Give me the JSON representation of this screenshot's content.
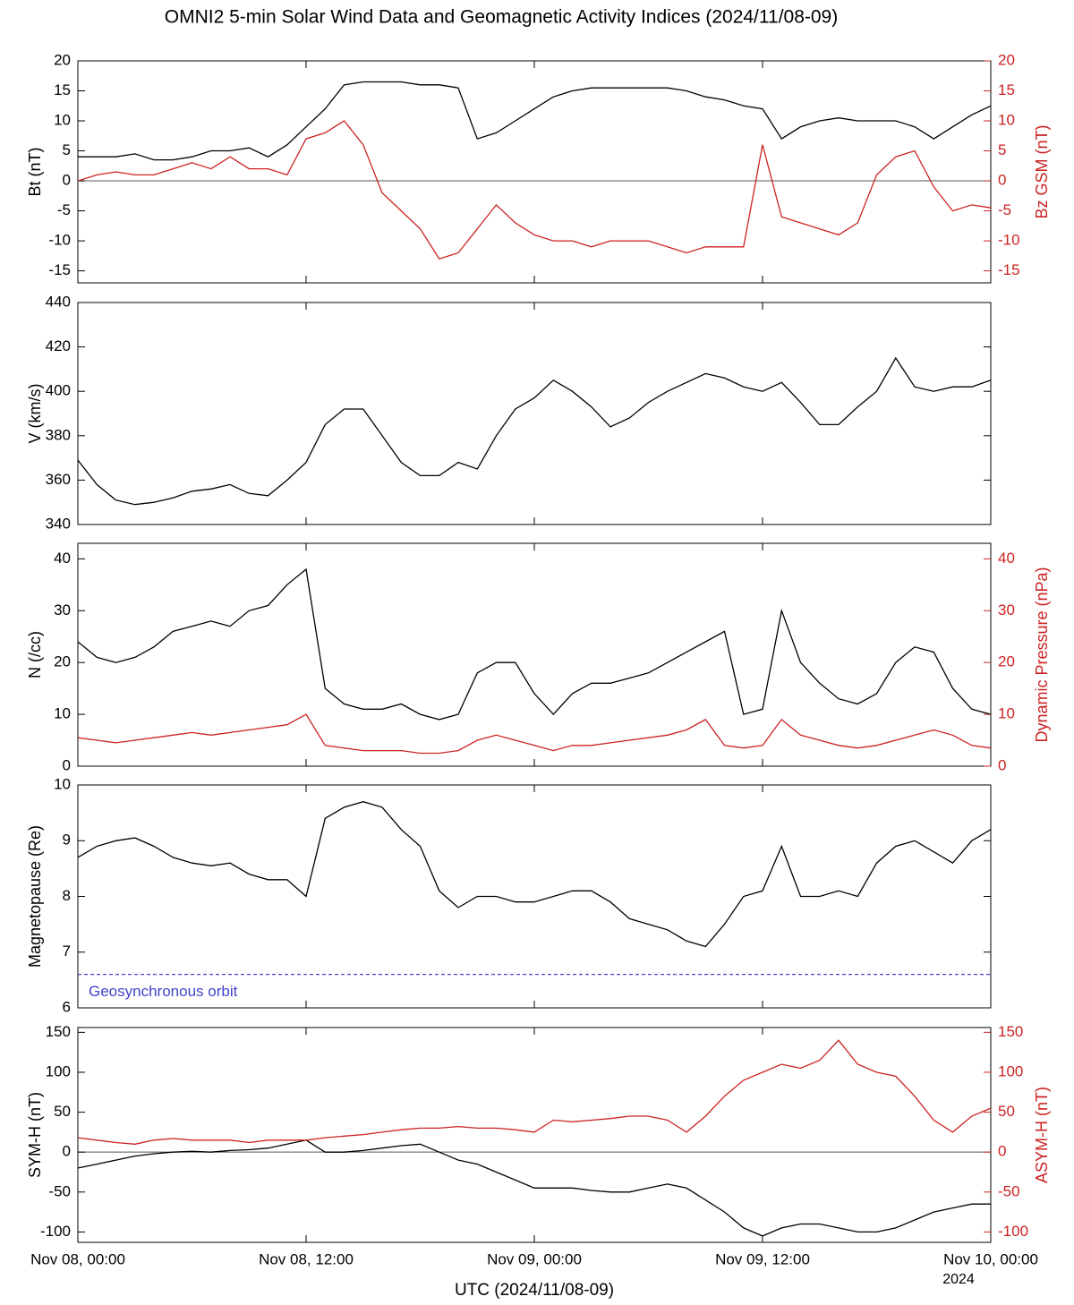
{
  "title": "OMNI2 5-min Solar Wind Data and Geomagnetic Activity Indices (2024/11/08-09)",
  "chart_data": [
    {
      "type": "line",
      "x": [
        0,
        1,
        2,
        3,
        4,
        5,
        6,
        7,
        8,
        9,
        10,
        11,
        12,
        13,
        14,
        15,
        16,
        17,
        18,
        19,
        20,
        21,
        22,
        23,
        24,
        25,
        26,
        27,
        28,
        29,
        30,
        31,
        32,
        33,
        34,
        35,
        36,
        37,
        38,
        39,
        40,
        41,
        42,
        43,
        44,
        45,
        46,
        47,
        48
      ],
      "xlim": [
        0,
        48
      ],
      "xticks": [
        0,
        12,
        24,
        36,
        48
      ],
      "ylim": [
        -17,
        20
      ],
      "yticks": [
        -15,
        -10,
        -5,
        0,
        5,
        10,
        15,
        20
      ],
      "y2lim": [
        -17,
        20
      ],
      "y2ticks": [
        -15,
        -10,
        -5,
        0,
        5,
        10,
        15,
        20
      ],
      "zero_line": true,
      "series": [
        {
          "name": "Bt (nT)",
          "color": "#000000",
          "axis": "y",
          "values": [
            4,
            4,
            4,
            4.5,
            3.5,
            3.5,
            4,
            5,
            5,
            5.5,
            4,
            6,
            9,
            12,
            16,
            16.5,
            16.5,
            16.5,
            16,
            16,
            15.5,
            7,
            8,
            10,
            12,
            14,
            15,
            15.5,
            15.5,
            15.5,
            15.5,
            15.5,
            15,
            14,
            13.5,
            12.5,
            12,
            7,
            9,
            10,
            10.5,
            10,
            10,
            10,
            9,
            7,
            9,
            11,
            12.5
          ]
        },
        {
          "name": "Bz GSM (nT)",
          "color": "#cc2222",
          "axis": "y2",
          "values": [
            0,
            1,
            1.5,
            1,
            1,
            2,
            3,
            2,
            4,
            2,
            2,
            1,
            7,
            8,
            10,
            6,
            -2,
            -5,
            -8,
            -13,
            -12,
            -8,
            -4,
            -7,
            -9,
            -10,
            -10,
            -11,
            -10,
            -10,
            -10,
            -11,
            -12,
            -11,
            -11,
            -11,
            6,
            -6,
            -7,
            -8,
            -9,
            -7,
            1,
            4,
            5,
            -1,
            -5,
            -4,
            -4.5
          ]
        }
      ]
    },
    {
      "type": "line",
      "x": [
        0,
        1,
        2,
        3,
        4,
        5,
        6,
        7,
        8,
        9,
        10,
        11,
        12,
        13,
        14,
        15,
        16,
        17,
        18,
        19,
        20,
        21,
        22,
        23,
        24,
        25,
        26,
        27,
        28,
        29,
        30,
        31,
        32,
        33,
        34,
        35,
        36,
        37,
        38,
        39,
        40,
        41,
        42,
        43,
        44,
        45,
        46,
        47,
        48
      ],
      "xlim": [
        0,
        48
      ],
      "xticks": [
        0,
        12,
        24,
        36,
        48
      ],
      "ylim": [
        340,
        440
      ],
      "yticks": [
        340,
        360,
        380,
        400,
        420,
        440
      ],
      "series": [
        {
          "name": "V (km/s)",
          "color": "#000000",
          "axis": "y",
          "values": [
            369,
            358,
            351,
            349,
            350,
            352,
            355,
            356,
            358,
            354,
            353,
            360,
            368,
            385,
            392,
            392,
            380,
            368,
            362,
            362,
            368,
            365,
            380,
            392,
            397,
            405,
            400,
            393,
            384,
            388,
            395,
            400,
            404,
            408,
            406,
            402,
            400,
            404,
            395,
            385,
            385,
            393,
            400,
            415,
            402,
            400,
            402,
            402,
            405
          ]
        }
      ]
    },
    {
      "type": "line",
      "x": [
        0,
        1,
        2,
        3,
        4,
        5,
        6,
        7,
        8,
        9,
        10,
        11,
        12,
        13,
        14,
        15,
        16,
        17,
        18,
        19,
        20,
        21,
        22,
        23,
        24,
        25,
        26,
        27,
        28,
        29,
        30,
        31,
        32,
        33,
        34,
        35,
        36,
        37,
        38,
        39,
        40,
        41,
        42,
        43,
        44,
        45,
        46,
        47,
        48
      ],
      "xlim": [
        0,
        48
      ],
      "xticks": [
        0,
        12,
        24,
        36,
        48
      ],
      "ylim": [
        0,
        43
      ],
      "yticks": [
        0,
        10,
        20,
        30,
        40
      ],
      "y2lim": [
        0,
        43
      ],
      "y2ticks": [
        0,
        10,
        20,
        30,
        40
      ],
      "series": [
        {
          "name": "N (/cc)",
          "color": "#000000",
          "axis": "y",
          "values": [
            24,
            21,
            20,
            21,
            23,
            26,
            27,
            28,
            27,
            30,
            31,
            35,
            38,
            15,
            12,
            11,
            11,
            12,
            10,
            9,
            10,
            18,
            20,
            20,
            14,
            10,
            14,
            16,
            16,
            17,
            18,
            20,
            22,
            24,
            26,
            10,
            11,
            30,
            20,
            16,
            13,
            12,
            14,
            20,
            23,
            22,
            15,
            11,
            10
          ]
        },
        {
          "name": "Dynamic Pressure (nPa)",
          "color": "#cc2222",
          "axis": "y2",
          "values": [
            5.5,
            5,
            4.5,
            5,
            5.5,
            6,
            6.5,
            6,
            6.5,
            7,
            7.5,
            8,
            10,
            4,
            3.5,
            3,
            3,
            3,
            2.5,
            2.5,
            3,
            5,
            6,
            5,
            4,
            3,
            4,
            4,
            4.5,
            5,
            5.5,
            6,
            7,
            9,
            4,
            3.5,
            4,
            9,
            6,
            5,
            4,
            3.5,
            4,
            5,
            6,
            7,
            6,
            4,
            3.5
          ]
        }
      ]
    },
    {
      "type": "line",
      "x": [
        0,
        1,
        2,
        3,
        4,
        5,
        6,
        7,
        8,
        9,
        10,
        11,
        12,
        13,
        14,
        15,
        16,
        17,
        18,
        19,
        20,
        21,
        22,
        23,
        24,
        25,
        26,
        27,
        28,
        29,
        30,
        31,
        32,
        33,
        34,
        35,
        36,
        37,
        38,
        39,
        40,
        41,
        42,
        43,
        44,
        45,
        46,
        47,
        48
      ],
      "xlim": [
        0,
        48
      ],
      "xticks": [
        0,
        12,
        24,
        36,
        48
      ],
      "ylim": [
        6,
        10
      ],
      "yticks": [
        6,
        7,
        8,
        9,
        10
      ],
      "reference_line": {
        "value": 6.6,
        "label": "Geosynchronous orbit",
        "color": "#4444cc"
      },
      "series": [
        {
          "name": "Magnetopause (Re)",
          "color": "#000000",
          "axis": "y",
          "values": [
            8.7,
            8.9,
            9.0,
            9.05,
            8.9,
            8.7,
            8.6,
            8.55,
            8.6,
            8.4,
            8.3,
            8.3,
            8.0,
            9.4,
            9.6,
            9.7,
            9.6,
            9.2,
            8.9,
            8.1,
            7.8,
            8.0,
            8.0,
            7.9,
            7.9,
            8.0,
            8.1,
            8.1,
            7.9,
            7.6,
            7.5,
            7.4,
            7.2,
            7.1,
            7.5,
            8.0,
            8.1,
            8.9,
            8.0,
            8.0,
            8.1,
            8.0,
            8.6,
            8.9,
            9.0,
            8.8,
            8.6,
            9.0,
            9.2
          ]
        }
      ]
    },
    {
      "type": "line",
      "x": [
        0,
        1,
        2,
        3,
        4,
        5,
        6,
        7,
        8,
        9,
        10,
        11,
        12,
        13,
        14,
        15,
        16,
        17,
        18,
        19,
        20,
        21,
        22,
        23,
        24,
        25,
        26,
        27,
        28,
        29,
        30,
        31,
        32,
        33,
        34,
        35,
        36,
        37,
        38,
        39,
        40,
        41,
        42,
        43,
        44,
        45,
        46,
        47,
        48
      ],
      "xlim": [
        0,
        48
      ],
      "xticks": [
        {
          "value": 0,
          "label": "Nov 08, 00:00"
        },
        {
          "value": 12,
          "label": "Nov 08, 12:00"
        },
        {
          "value": 24,
          "label": "Nov 09, 00:00"
        },
        {
          "value": 36,
          "label": "Nov 09, 12:00"
        },
        {
          "value": 48,
          "label": "Nov 10, 00:00"
        }
      ],
      "xlabel": "UTC (2024/11/08-09)",
      "year": "2024",
      "ylim": [
        -113,
        156
      ],
      "yticks": [
        -100,
        -50,
        0,
        50,
        100,
        150
      ],
      "y2lim": [
        -113,
        156
      ],
      "y2ticks": [
        -100,
        -50,
        0,
        50,
        100,
        150
      ],
      "zero_line": true,
      "series": [
        {
          "name": "SYM-H (nT)",
          "color": "#000000",
          "axis": "y",
          "values": [
            -20,
            -15,
            -10,
            -5,
            -2,
            0,
            1,
            0,
            2,
            3,
            5,
            10,
            15,
            0,
            0,
            2,
            5,
            8,
            10,
            0,
            -10,
            -15,
            -25,
            -35,
            -45,
            -45,
            -45,
            -48,
            -50,
            -50,
            -45,
            -40,
            -45,
            -60,
            -75,
            -95,
            -105,
            -95,
            -90,
            -90,
            -95,
            -100,
            -100,
            -95,
            -85,
            -75,
            -70,
            -65,
            -65
          ]
        },
        {
          "name": "ASYM-H (nT)",
          "color": "#cc2222",
          "axis": "y2",
          "values": [
            18,
            15,
            12,
            10,
            15,
            17,
            15,
            15,
            15,
            12,
            15,
            15,
            15,
            18,
            20,
            22,
            25,
            28,
            30,
            30,
            32,
            30,
            30,
            28,
            25,
            40,
            38,
            40,
            42,
            45,
            45,
            40,
            25,
            45,
            70,
            90,
            100,
            110,
            105,
            115,
            140,
            110,
            100,
            95,
            70,
            40,
            25,
            45,
            55
          ]
        }
      ]
    }
  ]
}
